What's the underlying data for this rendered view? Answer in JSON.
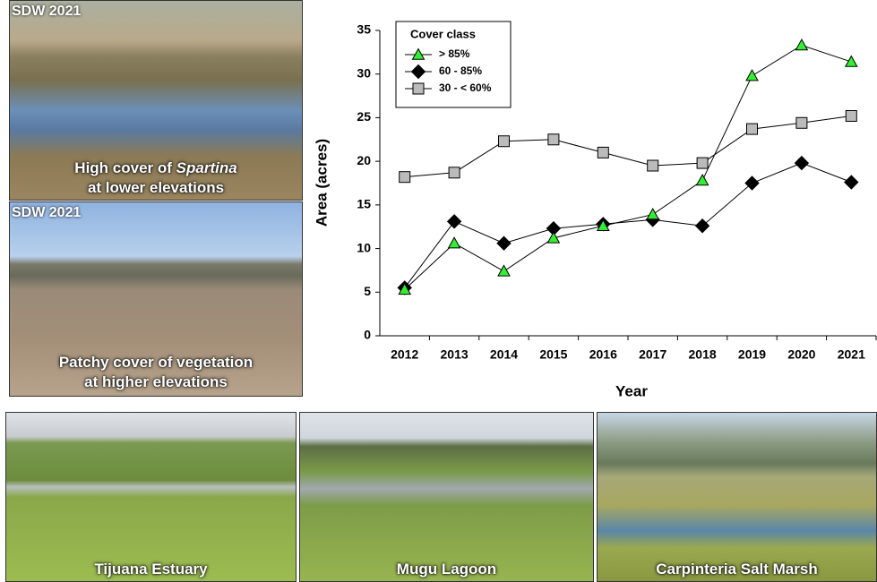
{
  "photos": [
    {
      "tag": "SDW 2021",
      "caption": [
        [
          "High cover of ",
          "Spartina"
        ],
        "at lower elevations"
      ]
    },
    {
      "tag": "SDW 2021",
      "caption": [
        "Patchy cover of vegetation",
        "at higher elevations"
      ]
    },
    {
      "caption": "Tijuana Estuary"
    },
    {
      "caption": "Mugu Lagoon"
    },
    {
      "caption": "Carpinteria Salt Marsh"
    }
  ],
  "chart_data": {
    "type": "line",
    "x_label": "Year",
    "y_label": "Area (acres)",
    "categories": [
      "2012",
      "2013",
      "2014",
      "2015",
      "2016",
      "2017",
      "2018",
      "2019",
      "2020",
      "2021"
    ],
    "legend_title": "Cover class",
    "legend": "upper left",
    "series": [
      {
        "name": "> 85%",
        "color": "#33ee33",
        "marker": "triangle",
        "values": [
          5.3,
          10.6,
          7.4,
          11.2,
          12.6,
          13.9,
          17.8,
          29.8,
          33.3,
          31.4
        ]
      },
      {
        "name": "60 - 85%",
        "color": "#000000",
        "marker": "diamond",
        "values": [
          5.5,
          13.1,
          10.6,
          12.3,
          12.8,
          13.3,
          12.6,
          17.5,
          19.8,
          17.6
        ]
      },
      {
        "name": "30 - < 60%",
        "color": "#bbbbbb",
        "marker": "square",
        "values": [
          18.2,
          18.7,
          22.3,
          22.5,
          21.0,
          19.5,
          19.8,
          23.7,
          24.4,
          25.2
        ]
      }
    ],
    "ylim": [
      0,
      35
    ],
    "yticks": [
      0,
      5,
      10,
      15,
      20,
      25,
      30,
      35
    ]
  }
}
